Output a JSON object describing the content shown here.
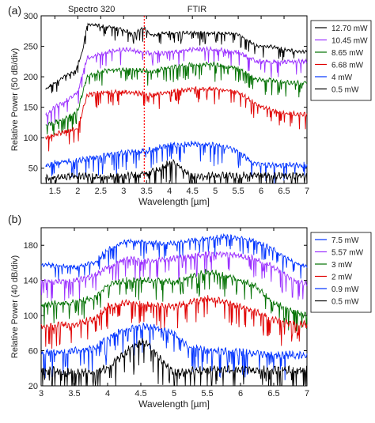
{
  "chart_data": [
    {
      "panel": "(a)",
      "type": "line",
      "xlabel": "Wavelength [µm]",
      "ylabel": "Relative Power (50 dB/div)",
      "xlim": [
        1.2,
        7.0
      ],
      "ylim": [
        25,
        300
      ],
      "xticks": [
        1.5,
        2,
        2.5,
        3,
        3.5,
        4,
        4.5,
        5,
        5.5,
        6,
        6.5,
        7
      ],
      "xtick_labels": [
        "1.5",
        "2",
        "2.5",
        "3",
        "3.5",
        "4",
        "4.5",
        "5",
        "5.5",
        "6",
        "6.5",
        "7"
      ],
      "yticks": [
        50,
        100,
        150,
        200,
        250,
        300
      ],
      "ytick_labels": [
        "50",
        "100",
        "150",
        "200",
        "250",
        "300"
      ],
      "annotations": [
        {
          "text": "Spectro 320",
          "x": 2.3
        },
        {
          "text": "FTIR",
          "x": 4.6
        }
      ],
      "divider": {
        "x": 3.45,
        "color": "#ff0000",
        "style": "dotted"
      },
      "legend_position": "right-outside",
      "grid": false,
      "series": [
        {
          "name": "12.70 mW",
          "color": "#000000",
          "x": [
            1.3,
            1.7,
            1.95,
            2.1,
            2.2,
            2.4,
            2.6,
            2.9,
            3.2,
            3.45,
            3.6,
            4.0,
            4.5,
            5.0,
            5.5,
            5.9,
            6.2,
            6.5,
            7.0
          ],
          "y": [
            180,
            200,
            210,
            240,
            285,
            285,
            282,
            280,
            270,
            280,
            268,
            272,
            272,
            272,
            270,
            250,
            250,
            245,
            240
          ],
          "noise": 6
        },
        {
          "name": "10.45 mW",
          "color": "#9b30ff",
          "x": [
            1.3,
            1.5,
            1.7,
            2.0,
            2.2,
            2.6,
            3.0,
            3.45,
            3.6,
            4.0,
            4.5,
            5.0,
            5.5,
            5.9,
            6.2,
            6.5,
            7.0
          ],
          "y": [
            135,
            150,
            158,
            175,
            230,
            240,
            245,
            240,
            238,
            240,
            245,
            245,
            240,
            225,
            225,
            225,
            225
          ],
          "noise": 8
        },
        {
          "name": "8.65 mW",
          "color": "#007000",
          "x": [
            1.3,
            1.5,
            1.7,
            2.0,
            2.2,
            2.6,
            3.0,
            3.45,
            3.6,
            4.0,
            4.5,
            5.0,
            5.5,
            5.9,
            6.2,
            6.5,
            7.0
          ],
          "y": [
            120,
            125,
            130,
            145,
            200,
            210,
            212,
            210,
            208,
            215,
            220,
            220,
            215,
            195,
            195,
            190,
            190
          ],
          "noise": 8
        },
        {
          "name": "6.68 mW",
          "color": "#e00000",
          "x": [
            1.3,
            1.5,
            1.7,
            2.0,
            2.2,
            2.6,
            3.0,
            3.45,
            3.6,
            4.0,
            4.5,
            5.0,
            5.5,
            5.9,
            6.2,
            6.5,
            7.0
          ],
          "y": [
            100,
            105,
            110,
            115,
            170,
            175,
            175,
            172,
            170,
            175,
            180,
            180,
            175,
            155,
            145,
            140,
            138
          ],
          "noise": 8
        },
        {
          "name": "4 mW",
          "color": "#0033ff",
          "x": [
            1.3,
            1.6,
            2.0,
            2.5,
            3.0,
            3.45,
            3.6,
            4.0,
            4.5,
            5.0,
            5.5,
            5.8,
            6.2,
            6.6,
            7.0
          ],
          "y": [
            55,
            60,
            62,
            70,
            75,
            78,
            80,
            88,
            90,
            88,
            78,
            60,
            55,
            55,
            55
          ],
          "noise": 10
        },
        {
          "name": "0.5 mW",
          "color": "#000000",
          "x": [
            1.3,
            1.6,
            2.0,
            2.5,
            3.0,
            3.45,
            3.6,
            3.8,
            4.0,
            4.2,
            4.4,
            4.6,
            5.0,
            5.5,
            6.0,
            6.5,
            7.0
          ],
          "y": [
            35,
            35,
            38,
            35,
            38,
            40,
            45,
            48,
            60,
            55,
            40,
            35,
            38,
            38,
            38,
            38,
            38
          ],
          "noise": 12
        }
      ]
    },
    {
      "panel": "(b)",
      "type": "line",
      "xlabel": "Wavelength [µm]",
      "ylabel": "Relative Power (40 dB/div)",
      "xlim": [
        3.0,
        7.0
      ],
      "ylim": [
        20,
        200
      ],
      "xticks": [
        3,
        3.5,
        4,
        4.5,
        5,
        5.5,
        6,
        6.5,
        7
      ],
      "xtick_labels": [
        "3",
        "3.5",
        "4",
        "4.5",
        "5",
        "5.5",
        "6",
        "6.5",
        "7"
      ],
      "yticks": [
        20,
        60,
        100,
        140,
        180
      ],
      "ytick_labels": [
        "20",
        "60",
        "100",
        "140",
        "180"
      ],
      "legend_position": "right-outside",
      "grid": false,
      "series": [
        {
          "name": "7.5 mW",
          "color": "#0033ff",
          "x": [
            3.0,
            3.5,
            3.8,
            4.0,
            4.3,
            4.6,
            5.0,
            5.5,
            5.8,
            6.2,
            6.5,
            6.8,
            7.0
          ],
          "y": [
            158,
            155,
            160,
            175,
            185,
            183,
            182,
            188,
            190,
            185,
            175,
            160,
            155
          ],
          "noise": 6
        },
        {
          "name": "5.57 mW",
          "color": "#9b30ff",
          "x": [
            3.0,
            3.5,
            3.8,
            4.0,
            4.3,
            4.6,
            5.0,
            5.5,
            5.8,
            6.2,
            6.5,
            6.8,
            7.0
          ],
          "y": [
            138,
            140,
            145,
            155,
            165,
            162,
            165,
            170,
            170,
            165,
            155,
            140,
            135
          ],
          "noise": 7
        },
        {
          "name": "3 mW",
          "color": "#007000",
          "x": [
            3.0,
            3.5,
            3.8,
            4.0,
            4.3,
            4.6,
            5.0,
            5.5,
            5.8,
            6.2,
            6.5,
            6.8,
            7.0
          ],
          "y": [
            112,
            115,
            120,
            135,
            140,
            140,
            138,
            150,
            145,
            135,
            115,
            105,
            100
          ],
          "noise": 8
        },
        {
          "name": "2 mW",
          "color": "#e00000",
          "x": [
            3.0,
            3.5,
            3.8,
            4.0,
            4.3,
            4.6,
            5.0,
            5.5,
            5.8,
            6.2,
            6.5,
            6.8,
            7.0
          ],
          "y": [
            88,
            90,
            95,
            110,
            115,
            112,
            110,
            120,
            115,
            105,
            95,
            90,
            90
          ],
          "noise": 8
        },
        {
          "name": "0.9 mW",
          "color": "#0033ff",
          "x": [
            3.0,
            3.5,
            3.8,
            4.0,
            4.3,
            4.6,
            5.0,
            5.2,
            5.5,
            6.0,
            6.5,
            7.0
          ],
          "y": [
            58,
            60,
            62,
            75,
            85,
            88,
            80,
            65,
            60,
            58,
            55,
            55
          ],
          "noise": 9
        },
        {
          "name": "0.5 mW",
          "color": "#000000",
          "x": [
            3.0,
            3.5,
            3.8,
            4.0,
            4.3,
            4.5,
            4.6,
            4.8,
            5.0,
            5.5,
            6.0,
            6.5,
            7.0
          ],
          "y": [
            38,
            35,
            35,
            40,
            60,
            70,
            68,
            50,
            35,
            38,
            38,
            38,
            38
          ],
          "noise": 10
        }
      ]
    }
  ]
}
